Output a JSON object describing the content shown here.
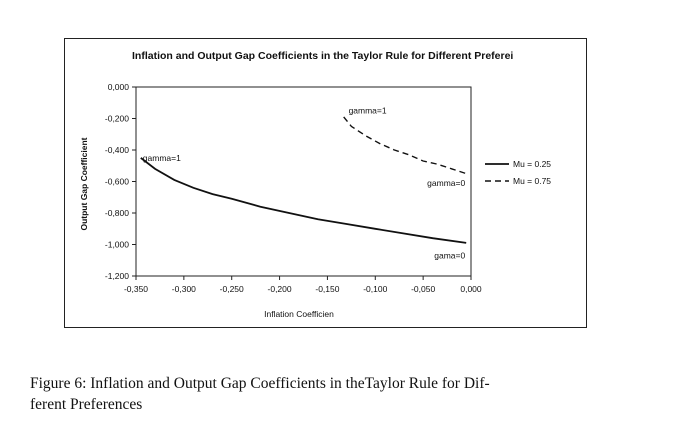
{
  "chart_data": {
    "type": "line",
    "title": "Inflation and Output Gap Coefficients in the Taylor Rule for Different Preferei",
    "xlabel": "Inflation Coefficien",
    "ylabel": "Output Gap Coefficient",
    "xlim": [
      -0.35,
      0.0
    ],
    "ylim": [
      -1.2,
      0.0
    ],
    "x_ticks": [
      -0.35,
      -0.3,
      -0.25,
      -0.2,
      -0.15,
      -0.1,
      -0.05,
      0.0
    ],
    "x_tick_labels": [
      "-0,350",
      "-0,300",
      "-0,250",
      "-0,200",
      "-0,150",
      "-0,100",
      "-0,050",
      "0,000"
    ],
    "y_ticks": [
      0.0,
      -0.2,
      -0.4,
      -0.6,
      -0.8,
      -1.0,
      -1.2
    ],
    "y_tick_labels": [
      "0,000",
      "-0,200",
      "-0,400",
      "-0,600",
      "-0,800",
      "-1,000",
      "-1,200"
    ],
    "grid": false,
    "legend_position": "right",
    "series": [
      {
        "name": "Mu = 0.25",
        "style": "solid",
        "x": [
          -0.345,
          -0.33,
          -0.31,
          -0.29,
          -0.27,
          -0.25,
          -0.22,
          -0.19,
          -0.16,
          -0.13,
          -0.1,
          -0.07,
          -0.04,
          -0.005
        ],
        "y": [
          -0.45,
          -0.52,
          -0.59,
          -0.64,
          -0.68,
          -0.71,
          -0.76,
          -0.8,
          -0.84,
          -0.87,
          -0.9,
          -0.93,
          -0.96,
          -0.99
        ]
      },
      {
        "name": "Mu = 0.75",
        "style": "dashed",
        "x": [
          -0.133,
          -0.125,
          -0.11,
          -0.095,
          -0.08,
          -0.065,
          -0.05,
          -0.035,
          -0.02,
          -0.005
        ],
        "y": [
          -0.19,
          -0.25,
          -0.31,
          -0.36,
          -0.4,
          -0.43,
          -0.47,
          -0.49,
          -0.52,
          -0.55
        ]
      }
    ],
    "annotations": [
      {
        "text": "gamma=1",
        "series": "Mu = 0.25",
        "x": -0.345,
        "y": -0.45
      },
      {
        "text": "gamma=1",
        "series": "Mu = 0.75",
        "x": -0.13,
        "y": -0.15
      },
      {
        "text": "gamma=0",
        "series": "Mu = 0.75",
        "x": -0.005,
        "y": -0.61
      },
      {
        "text": "gama=0",
        "series": "Mu = 0.25",
        "x": -0.005,
        "y": -1.07
      }
    ]
  },
  "caption": {
    "line1": "Figure 6:  Inflation and Output Gap Coefficients in theTaylor Rule for Dif-",
    "line2": "ferent Preferences"
  }
}
